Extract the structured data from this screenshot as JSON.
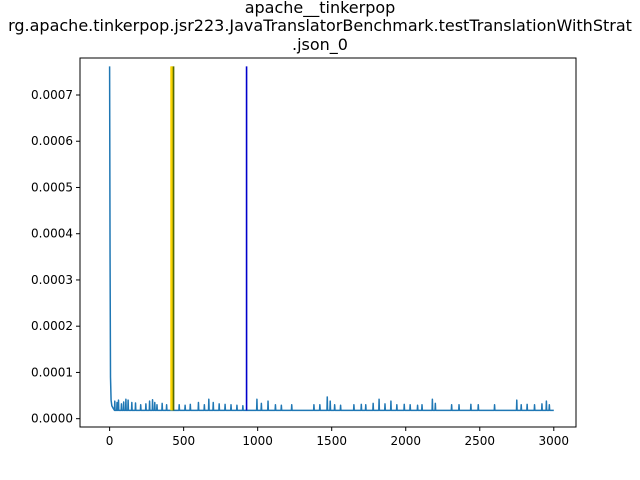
{
  "chart_data": {
    "type": "line",
    "title_lines": [
      "apache__tinkerpop",
      "rg.apache.tinkerpop.jsr223.JavaTranslatorBenchmark.testTranslationWithStrat",
      ".json_0"
    ],
    "xlabel": "",
    "ylabel": "",
    "xlim": [
      -200,
      3150
    ],
    "ylim": [
      -1.8e-05,
      0.00078
    ],
    "x_ticks": [
      0,
      500,
      1000,
      1500,
      2000,
      2500,
      3000
    ],
    "x_tick_labels": [
      "0",
      "500",
      "1000",
      "1500",
      "2000",
      "2500",
      "3000"
    ],
    "y_ticks": [
      0.0,
      0.0001,
      0.0002,
      0.0003,
      0.0004,
      0.0005,
      0.0006,
      0.0007
    ],
    "y_tick_labels": [
      "0.0000",
      "0.0001",
      "0.0002",
      "0.0003",
      "0.0004",
      "0.0005",
      "0.0006",
      "0.0007"
    ],
    "series": [
      {
        "color": "#1f77b4",
        "baseline": 1.8e-05,
        "start_points": [
          [
            0,
            0.000762
          ],
          [
            3,
            0.00035
          ],
          [
            6,
            9e-05
          ],
          [
            10,
            4e-05
          ],
          [
            15,
            2.8e-05
          ],
          [
            25,
            2.2e-05
          ]
        ],
        "spikes": [
          [
            20,
            4e-05
          ],
          [
            35,
            3.8e-05
          ],
          [
            50,
            3.5e-05
          ],
          [
            60,
            4e-05
          ],
          [
            80,
            3.2e-05
          ],
          [
            95,
            3.6e-05
          ],
          [
            110,
            4.2e-05
          ],
          [
            125,
            4e-05
          ],
          [
            150,
            3.5e-05
          ],
          [
            175,
            3.4e-05
          ],
          [
            210,
            3e-05
          ],
          [
            245,
            3.2e-05
          ],
          [
            270,
            3.8e-05
          ],
          [
            290,
            4.1e-05
          ],
          [
            305,
            3.5e-05
          ],
          [
            320,
            3e-05
          ],
          [
            355,
            3.3e-05
          ],
          [
            385,
            3e-05
          ],
          [
            470,
            3e-05
          ],
          [
            510,
            2.9e-05
          ],
          [
            545,
            3.1e-05
          ],
          [
            600,
            3.5e-05
          ],
          [
            640,
            3e-05
          ],
          [
            670,
            4.2e-05
          ],
          [
            700,
            3.5e-05
          ],
          [
            740,
            3.2e-05
          ],
          [
            780,
            3.1e-05
          ],
          [
            820,
            3e-05
          ],
          [
            860,
            2.9e-05
          ],
          [
            900,
            2.8e-05
          ],
          [
            995,
            4.2e-05
          ],
          [
            1025,
            3.3e-05
          ],
          [
            1070,
            3.8e-05
          ],
          [
            1120,
            3e-05
          ],
          [
            1160,
            2.9e-05
          ],
          [
            1230,
            3e-05
          ],
          [
            1380,
            3e-05
          ],
          [
            1420,
            3e-05
          ],
          [
            1470,
            4.7e-05
          ],
          [
            1490,
            3.8e-05
          ],
          [
            1520,
            3e-05
          ],
          [
            1560,
            2.9e-05
          ],
          [
            1650,
            3e-05
          ],
          [
            1700,
            3.1e-05
          ],
          [
            1730,
            3e-05
          ],
          [
            1780,
            3.3e-05
          ],
          [
            1820,
            4.2e-05
          ],
          [
            1860,
            3.2e-05
          ],
          [
            1900,
            3.8e-05
          ],
          [
            1940,
            3e-05
          ],
          [
            1990,
            3.1e-05
          ],
          [
            2030,
            3e-05
          ],
          [
            2080,
            2.9e-05
          ],
          [
            2110,
            3e-05
          ],
          [
            2180,
            4.2e-05
          ],
          [
            2200,
            3.3e-05
          ],
          [
            2310,
            3e-05
          ],
          [
            2360,
            3e-05
          ],
          [
            2440,
            3.1e-05
          ],
          [
            2490,
            3e-05
          ],
          [
            2600,
            3e-05
          ],
          [
            2750,
            4e-05
          ],
          [
            2780,
            3e-05
          ],
          [
            2820,
            3.1e-05
          ],
          [
            2870,
            3e-05
          ],
          [
            2920,
            3.2e-05
          ],
          [
            2950,
            3.8e-05
          ],
          [
            2970,
            3e-05
          ]
        ],
        "x_end": 3000
      }
    ],
    "vertical_lines": [
      {
        "x": 415,
        "y_top": 0.000762,
        "color": "#ffd700"
      },
      {
        "x": 420,
        "y_top": 0.000762,
        "color": "#ffd700"
      },
      {
        "x": 425,
        "y_top": 0.000762,
        "color": "#e8c800"
      },
      {
        "x": 432,
        "y_top": 0.000762,
        "color": "#556b00"
      },
      {
        "x": 925,
        "y_top": 0.000762,
        "color": "#0000cc"
      }
    ],
    "grid": false
  }
}
